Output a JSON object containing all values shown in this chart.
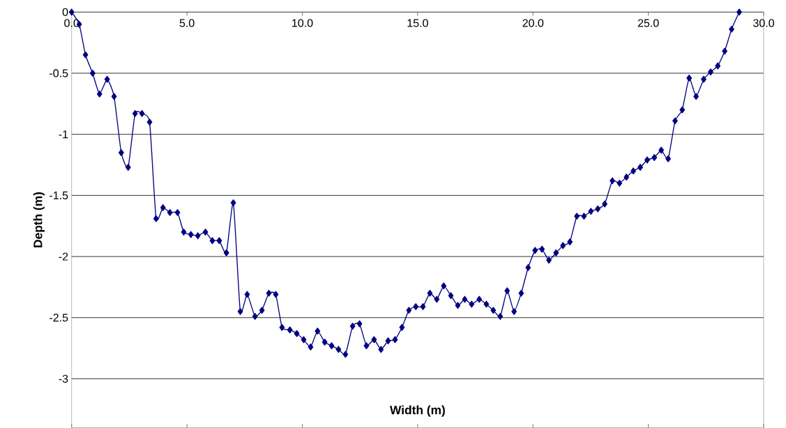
{
  "chart_data": {
    "type": "line",
    "xlabel": "Width (m)",
    "ylabel": "Depth (m)",
    "xlim": [
      0,
      30
    ],
    "ylim": [
      -3.4,
      0
    ],
    "xticks": [
      {
        "value": 0,
        "label": "0.0"
      },
      {
        "value": 5,
        "label": "5.0"
      },
      {
        "value": 10,
        "label": "10.0"
      },
      {
        "value": 15,
        "label": "15.0"
      },
      {
        "value": 20,
        "label": "20.0"
      },
      {
        "value": 25,
        "label": "25.0"
      },
      {
        "value": 30,
        "label": "30.0"
      }
    ],
    "yticks": [
      0,
      -0.5,
      -1,
      -1.5,
      -2,
      -2.5,
      -3
    ],
    "grid": "y",
    "marker": "diamond",
    "line_style": "solid",
    "series": [
      {
        "color": "#000080",
        "x": [
          0,
          0.33,
          0.6,
          0.91,
          1.21,
          1.54,
          1.84,
          2.15,
          2.45,
          2.75,
          3.05,
          3.38,
          3.66,
          3.96,
          4.26,
          4.59,
          4.86,
          5.17,
          5.47,
          5.8,
          6.1,
          6.4,
          6.71,
          7.01,
          7.31,
          7.61,
          7.95,
          8.25,
          8.55,
          8.85,
          9.12,
          9.46,
          9.76,
          10.06,
          10.36,
          10.66,
          10.97,
          11.27,
          11.57,
          11.87,
          12.18,
          12.48,
          12.78,
          13.11,
          13.41,
          13.72,
          14.02,
          14.32,
          14.62,
          14.92,
          15.23,
          15.53,
          15.83,
          16.13,
          16.44,
          16.74,
          17.04,
          17.34,
          17.67,
          17.98,
          18.28,
          18.58,
          18.88,
          19.18,
          19.49,
          19.79,
          20.09,
          20.39,
          20.69,
          21.0,
          21.3,
          21.6,
          21.9,
          22.21,
          22.51,
          22.81,
          23.11,
          23.44,
          23.75,
          24.05,
          24.35,
          24.65,
          24.95,
          25.26,
          25.56,
          25.86,
          26.16,
          26.47,
          26.77,
          27.07,
          27.4,
          27.7,
          28.01,
          28.31,
          28.61,
          28.94
        ],
        "values": [
          0,
          -0.1,
          -0.35,
          -0.5,
          -0.67,
          -0.55,
          -0.69,
          -1.15,
          -1.27,
          -0.83,
          -0.83,
          -0.9,
          -1.69,
          -1.6,
          -1.64,
          -1.64,
          -1.8,
          -1.82,
          -1.83,
          -1.8,
          -1.87,
          -1.87,
          -1.97,
          -1.56,
          -2.45,
          -2.31,
          -2.49,
          -2.44,
          -2.3,
          -2.31,
          -2.58,
          -2.6,
          -2.63,
          -2.68,
          -2.74,
          -2.61,
          -2.7,
          -2.73,
          -2.76,
          -2.8,
          -2.57,
          -2.55,
          -2.73,
          -2.68,
          -2.76,
          -2.69,
          -2.68,
          -2.58,
          -2.44,
          -2.41,
          -2.41,
          -2.3,
          -2.35,
          -2.24,
          -2.32,
          -2.4,
          -2.35,
          -2.39,
          -2.35,
          -2.39,
          -2.44,
          -2.49,
          -2.28,
          -2.45,
          -2.3,
          -2.09,
          -1.95,
          -1.94,
          -2.03,
          -1.97,
          -1.91,
          -1.88,
          -1.67,
          -1.67,
          -1.63,
          -1.61,
          -1.57,
          -1.38,
          -1.4,
          -1.35,
          -1.3,
          -1.27,
          -1.21,
          -1.19,
          -1.13,
          -1.2,
          -0.89,
          -0.8,
          -0.54,
          -0.69,
          -0.55,
          -0.49,
          -0.44,
          -0.32,
          -0.14,
          0
        ]
      }
    ]
  }
}
